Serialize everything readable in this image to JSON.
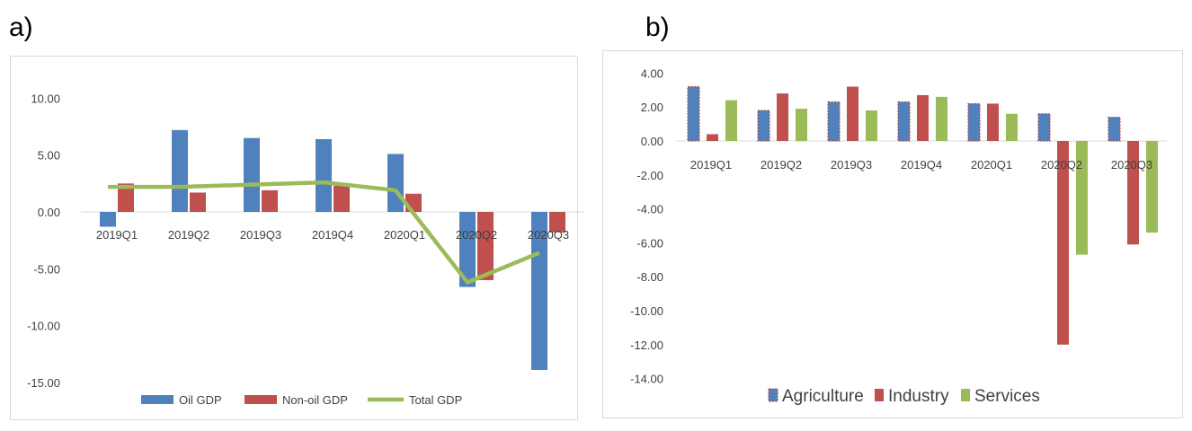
{
  "panels": {
    "a_label": "a)",
    "b_label": "b)"
  },
  "chart_data": [
    {
      "type": "bar",
      "panel": "a)",
      "categories": [
        "2019Q1",
        "2019Q2",
        "2019Q3",
        "2019Q4",
        "2020Q1",
        "2020Q2",
        "2020Q3"
      ],
      "series": [
        {
          "name": "Oil GDP",
          "type": "bar",
          "color": "#4f81bd",
          "values": [
            -1.3,
            7.2,
            6.5,
            6.4,
            5.1,
            -6.6,
            -13.9
          ]
        },
        {
          "name": "Non-oil GDP",
          "type": "bar",
          "color": "#c0504d",
          "values": [
            2.5,
            1.7,
            1.9,
            2.3,
            1.6,
            -6.0,
            -1.8
          ]
        },
        {
          "name": "Total GDP",
          "type": "line",
          "color": "#9bbb59",
          "values": [
            2.2,
            2.2,
            2.4,
            2.6,
            1.9,
            -6.2,
            -3.6
          ]
        }
      ],
      "ylim": [
        -15,
        10
      ],
      "yticks": [
        "10.00",
        "5.00",
        "0.00",
        "-5.00",
        "-10.00",
        "-15.00"
      ],
      "ytick_values": [
        10,
        5,
        0,
        -5,
        -10,
        -15
      ],
      "legend": "bottom",
      "grid": false,
      "title": "",
      "xlabel": "",
      "ylabel": ""
    },
    {
      "type": "bar",
      "panel": "b)",
      "categories": [
        "2019Q1",
        "2019Q2",
        "2019Q3",
        "2019Q4",
        "2020Q1",
        "2020Q2",
        "2020Q3"
      ],
      "series": [
        {
          "name": "Agriculture",
          "color": "#4f81bd",
          "values": [
            3.2,
            1.8,
            2.3,
            2.3,
            2.2,
            1.6,
            1.4
          ]
        },
        {
          "name": "Industry",
          "color": "#c0504d",
          "values": [
            0.4,
            2.8,
            3.2,
            2.7,
            2.2,
            -12.0,
            -6.1
          ]
        },
        {
          "name": "Services",
          "color": "#9bbb59",
          "values": [
            2.4,
            1.9,
            1.8,
            2.6,
            1.6,
            -6.7,
            -5.4
          ]
        }
      ],
      "ylim": [
        -14,
        4
      ],
      "yticks": [
        "4.00",
        "2.00",
        "0.00",
        "-2.00",
        "-4.00",
        "-6.00",
        "-8.00",
        "-10.00",
        "-12.00",
        "-14.00"
      ],
      "ytick_values": [
        4,
        2,
        0,
        -2,
        -4,
        -6,
        -8,
        -10,
        -12,
        -14
      ],
      "legend": "bottom",
      "grid": false,
      "title": "",
      "xlabel": "",
      "ylabel": ""
    }
  ]
}
